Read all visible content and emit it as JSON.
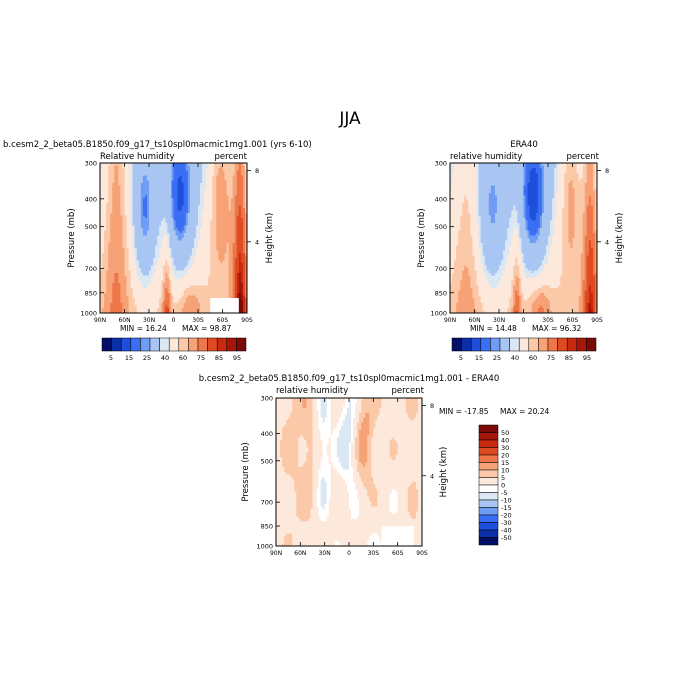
{
  "page": {
    "title": "JJA"
  },
  "colors": {
    "rh_scale": [
      "#030f64",
      "#0a2fa8",
      "#1e4fdc",
      "#3a6ff4",
      "#6f9cf5",
      "#a9c6f3",
      "#dbe8f4",
      "#fde9dc",
      "#fbc8a8",
      "#f7a276",
      "#ee7648",
      "#e04a22",
      "#c92a0e",
      "#a5170a",
      "#7a0a05"
    ],
    "diff_scale": [
      "#030f64",
      "#0a2fa8",
      "#1e4fdc",
      "#3a6ff4",
      "#6f9cf5",
      "#a9c6f3",
      "#dbe8f4",
      "#ffffff",
      "#fde9dc",
      "#fbc8a8",
      "#f7a276",
      "#ee7648",
      "#e04a22",
      "#c92a0e",
      "#a5170a",
      "#7a0a05"
    ]
  },
  "chart_data": [
    {
      "type": "heatmap",
      "id": "model",
      "title": "b.cesm2_2_beta05.B1850.f09_g17_ts10spl0macmic1mg1.001 (yrs 6-10)",
      "left_label": "Relative humidity",
      "right_label": "percent",
      "xlabel": "",
      "ylabel": "Pressure (mb)",
      "y2label": "Height (km)",
      "x_ticks": [
        "90N",
        "60N",
        "30N",
        "0",
        "30S",
        "60S",
        "90S"
      ],
      "y_ticks": [
        "300",
        "400",
        "500",
        "700",
        "850",
        "1000"
      ],
      "y2_ticks": [
        "8",
        "4"
      ],
      "min_text": "MIN =  16.24",
      "max_text": "MAX =  98.87",
      "min": 16.24,
      "max": 98.87,
      "colorbar_labels": [
        "5",
        "15",
        "25",
        "40",
        "60",
        "75",
        "85",
        "95"
      ]
    },
    {
      "type": "heatmap",
      "id": "obs",
      "title": "ERA40",
      "left_label": "relative humidity",
      "right_label": "percent",
      "xlabel": "",
      "ylabel": "Pressure (mb)",
      "y2label": "Height (km)",
      "x_ticks": [
        "90N",
        "60N",
        "30N",
        "0",
        "30S",
        "60S",
        "90S"
      ],
      "y_ticks": [
        "300",
        "400",
        "500",
        "700",
        "850",
        "1000"
      ],
      "y2_ticks": [
        "8",
        "4"
      ],
      "min_text": "MIN =  14.48",
      "max_text": "MAX =  96.32",
      "min": 14.48,
      "max": 96.32,
      "colorbar_labels": [
        "5",
        "15",
        "25",
        "40",
        "60",
        "75",
        "85",
        "95"
      ]
    },
    {
      "type": "heatmap",
      "id": "diff",
      "title": "b.cesm2_2_beta05.B1850.f09_g17_ts10spl0macmic1mg1.001 - ERA40",
      "left_label": "relative humidity",
      "right_label": "percent",
      "xlabel": "",
      "ylabel": "Pressure (mb)",
      "y2label": "Height (km)",
      "x_ticks": [
        "90N",
        "60N",
        "30N",
        "0",
        "30S",
        "60S",
        "90S"
      ],
      "y_ticks": [
        "300",
        "400",
        "500",
        "700",
        "850",
        "1000"
      ],
      "y2_ticks": [
        "8",
        "4"
      ],
      "min_text": "MIN = -17.85",
      "max_text": "MAX =  20.24",
      "min": -17.85,
      "max": 20.24,
      "colorbar_labels": [
        "50",
        "40",
        "30",
        "20",
        "15",
        "10",
        "5",
        "0",
        "-5",
        "-10",
        "-15",
        "-20",
        "-30",
        "-40",
        "-50"
      ]
    }
  ]
}
